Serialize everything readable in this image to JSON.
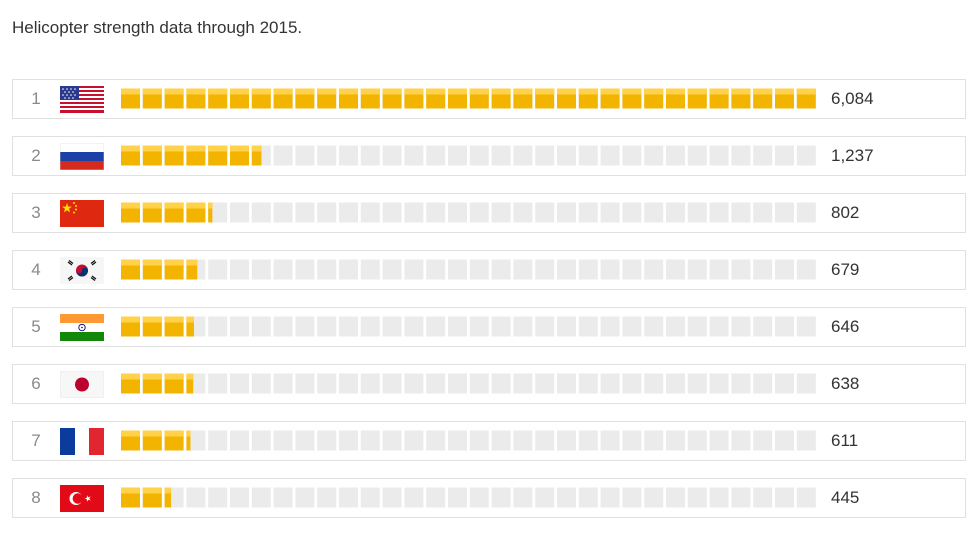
{
  "caption": "Helicopter strength data through 2015.",
  "colors": {
    "bar_fill": "#f3b400",
    "bar_highlight": "#ffd24a",
    "bar_empty": "#ebebeb",
    "row_border": "#e0e0e0"
  },
  "rows": [
    {
      "rank": "1",
      "flag_icon": "usa-flag-icon",
      "value_label": "6,084"
    },
    {
      "rank": "2",
      "flag_icon": "russia-flag-icon",
      "value_label": "1,237"
    },
    {
      "rank": "3",
      "flag_icon": "china-flag-icon",
      "value_label": "802"
    },
    {
      "rank": "4",
      "flag_icon": "south-korea-flag-icon",
      "value_label": "679"
    },
    {
      "rank": "5",
      "flag_icon": "india-flag-icon",
      "value_label": "646"
    },
    {
      "rank": "6",
      "flag_icon": "japan-flag-icon",
      "value_label": "638"
    },
    {
      "rank": "7",
      "flag_icon": "france-flag-icon",
      "value_label": "611"
    },
    {
      "rank": "8",
      "flag_icon": "turkey-flag-icon",
      "value_label": "445"
    }
  ],
  "chart_data": {
    "type": "bar",
    "title": "Helicopter strength data through 2015.",
    "orientation": "horizontal",
    "categories": [
      "1",
      "2",
      "3",
      "4",
      "5",
      "6",
      "7",
      "8"
    ],
    "values": [
      6084,
      1237,
      802,
      679,
      646,
      638,
      611,
      445
    ],
    "xlim": [
      0,
      6084
    ],
    "grid": false,
    "segment_count": 32
  }
}
